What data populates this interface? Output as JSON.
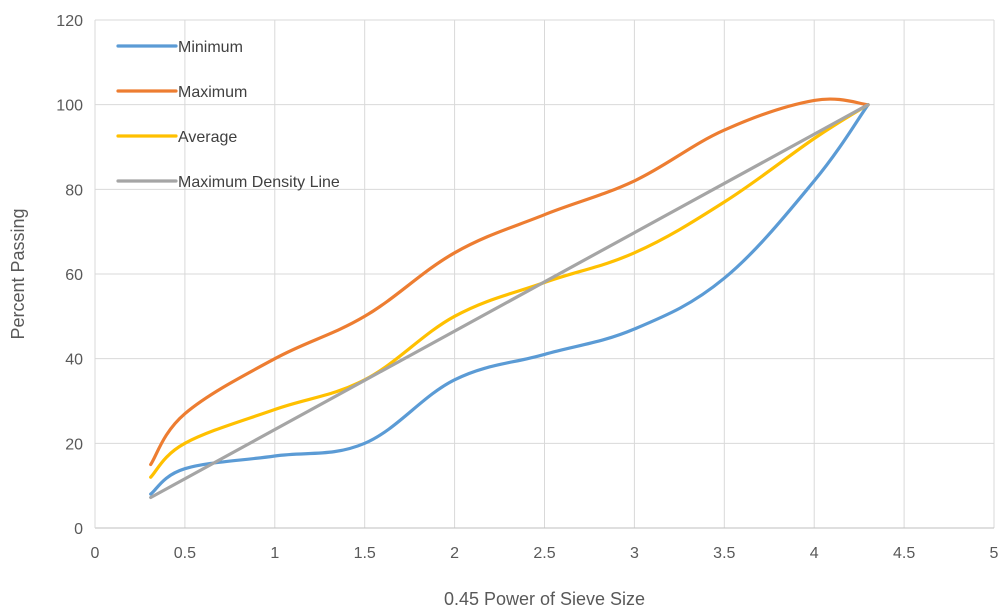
{
  "chart_data": {
    "type": "line",
    "title": "",
    "xlabel": "0.45 Power of Sieve Size",
    "ylabel": "Percent Passing",
    "xlim": [
      0,
      5
    ],
    "ylim": [
      0,
      120
    ],
    "xticks": [
      0,
      0.5,
      1,
      1.5,
      2,
      2.5,
      3,
      3.5,
      4,
      4.5,
      5
    ],
    "xtick_labels": [
      "0",
      "0.5",
      "1",
      "1.5",
      "2",
      "2.5",
      "3",
      "3.5",
      "4",
      "4.5",
      "5"
    ],
    "yticks": [
      0,
      20,
      40,
      60,
      80,
      100,
      120
    ],
    "ytick_labels": [
      "0",
      "20",
      "40",
      "60",
      "80",
      "100",
      "120"
    ],
    "grid": true,
    "legend_position": "top-left",
    "series": [
      {
        "name": "Minimum",
        "color": "#5b9bd5",
        "x": [
          0.31,
          0.5,
          1.0,
          1.5,
          2.0,
          2.5,
          3.0,
          3.5,
          4.0,
          4.3
        ],
        "y": [
          8,
          14,
          17,
          20,
          35,
          41,
          47,
          59,
          82,
          100
        ]
      },
      {
        "name": "Maximum",
        "color": "#ed7d31",
        "x": [
          0.31,
          0.5,
          1.0,
          1.5,
          2.0,
          2.5,
          3.0,
          3.5,
          4.0,
          4.3
        ],
        "y": [
          15,
          27,
          40,
          50,
          65,
          74,
          82,
          94,
          101,
          100
        ]
      },
      {
        "name": "Average",
        "color": "#ffc000",
        "x": [
          0.31,
          0.5,
          1.0,
          1.5,
          2.0,
          2.5,
          3.0,
          3.5,
          4.0,
          4.3
        ],
        "y": [
          12,
          20,
          28,
          35,
          50,
          58,
          65,
          77,
          92,
          100
        ]
      },
      {
        "name": "Maximum Density Line",
        "color": "#a5a5a5",
        "x": [
          0.31,
          4.3
        ],
        "y": [
          7.2,
          100
        ]
      }
    ]
  }
}
